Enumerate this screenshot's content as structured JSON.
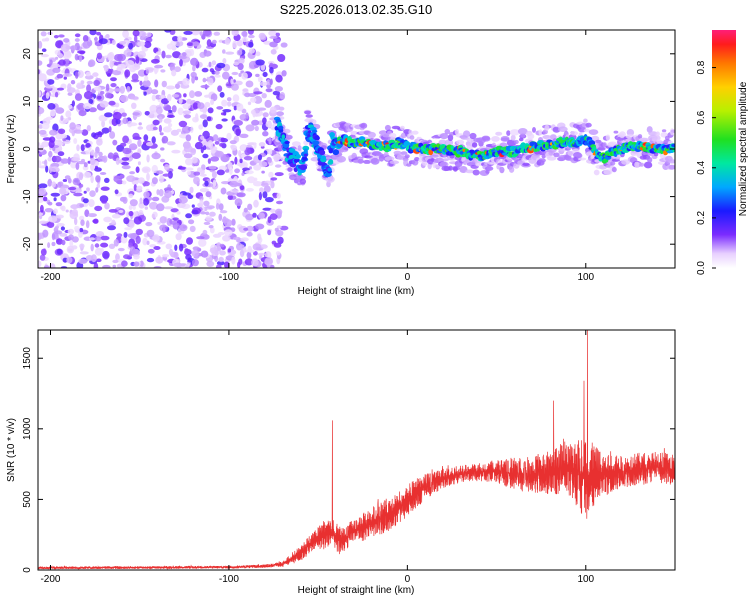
{
  "title": "S225.2026.013.02.35.G10",
  "chart_data": [
    {
      "type": "heatmap",
      "xlabel": "Height of straight line (km)",
      "ylabel": "Frequency (Hz)",
      "xlim": [
        -207,
        150
      ],
      "ylim": [
        -25,
        25
      ],
      "x_ticks": [
        -200,
        -100,
        0,
        100
      ],
      "x_tick_labels": [
        "-200",
        "-100",
        "0",
        "100"
      ],
      "y_ticks": [
        -20,
        -10,
        0,
        10,
        20
      ],
      "y_tick_labels": [
        "-20",
        "-10",
        "0",
        "10",
        "20"
      ],
      "noise_region_km": [
        -207,
        -73
      ],
      "ridge": {
        "x": [
          -73,
          -70,
          -66,
          -62,
          -58,
          -56,
          -53,
          -50,
          -47,
          -44,
          -42,
          -40,
          -35,
          -30,
          -25,
          -20,
          -15,
          -10,
          -5,
          0,
          10,
          20,
          30,
          40,
          45,
          50,
          60,
          70,
          80,
          90,
          95,
          100,
          103,
          106,
          110,
          115,
          120,
          130,
          140,
          150
        ],
        "y": [
          5,
          2,
          -1,
          -3,
          -4,
          4,
          3,
          0,
          -3,
          -5,
          2,
          1,
          2,
          1,
          1.5,
          1,
          0.5,
          0.5,
          1.5,
          0.5,
          0,
          0,
          -0.5,
          -1.5,
          -1,
          -0.5,
          -0.5,
          0.5,
          1,
          1.5,
          1.5,
          2,
          1,
          -1,
          -2,
          -0.5,
          0,
          0.5,
          0,
          0
        ]
      },
      "colorbar": {
        "label": "Normalized spectral amplitude",
        "range": [
          0,
          0.95
        ],
        "ticks": [
          0,
          0.2,
          0.4,
          0.6,
          0.8
        ],
        "tick_labels": [
          "0.0",
          "0.2",
          "0.4",
          "0.6",
          "0.8"
        ]
      }
    },
    {
      "type": "line",
      "xlabel": "Height of straight line (km)",
      "ylabel": "SNR (10 * v/v)",
      "xlim": [
        -207,
        150
      ],
      "ylim": [
        0,
        1700
      ],
      "x_ticks": [
        -200,
        -100,
        0,
        100
      ],
      "x_tick_labels": [
        "-200",
        "-100",
        "0",
        "100"
      ],
      "y_ticks": [
        0,
        500,
        1000,
        1500
      ],
      "y_tick_labels": [
        "0",
        "500",
        "1000",
        "1500"
      ],
      "color": "#e83030",
      "envelope": {
        "x": [
          -207,
          -100,
          -80,
          -70,
          -60,
          -50,
          -45,
          -42,
          -40,
          -38,
          -35,
          -30,
          -25,
          -20,
          -15,
          -10,
          -5,
          0,
          5,
          10,
          20,
          30,
          40,
          50,
          60,
          70,
          80,
          85,
          90,
          95,
          100,
          105,
          110,
          120,
          130,
          140,
          150
        ],
        "lower": [
          5,
          10,
          15,
          20,
          60,
          150,
          140,
          180,
          120,
          100,
          130,
          200,
          200,
          230,
          250,
          280,
          320,
          380,
          430,
          500,
          580,
          620,
          630,
          620,
          560,
          550,
          520,
          540,
          500,
          450,
          350,
          450,
          520,
          580,
          600,
          620,
          600
        ],
        "upper": [
          25,
          30,
          40,
          60,
          180,
          310,
          380,
          360,
          330,
          320,
          320,
          360,
          400,
          450,
          480,
          520,
          560,
          600,
          650,
          680,
          720,
          740,
          760,
          780,
          800,
          800,
          830,
          880,
          900,
          920,
          960,
          880,
          820,
          820,
          830,
          840,
          820
        ]
      },
      "spikes": [
        {
          "x": -42,
          "y": 1060
        },
        {
          "x": 82,
          "y": 1200
        },
        {
          "x": 99,
          "y": 1340
        },
        {
          "x": 101,
          "y": 1700
        }
      ]
    }
  ]
}
